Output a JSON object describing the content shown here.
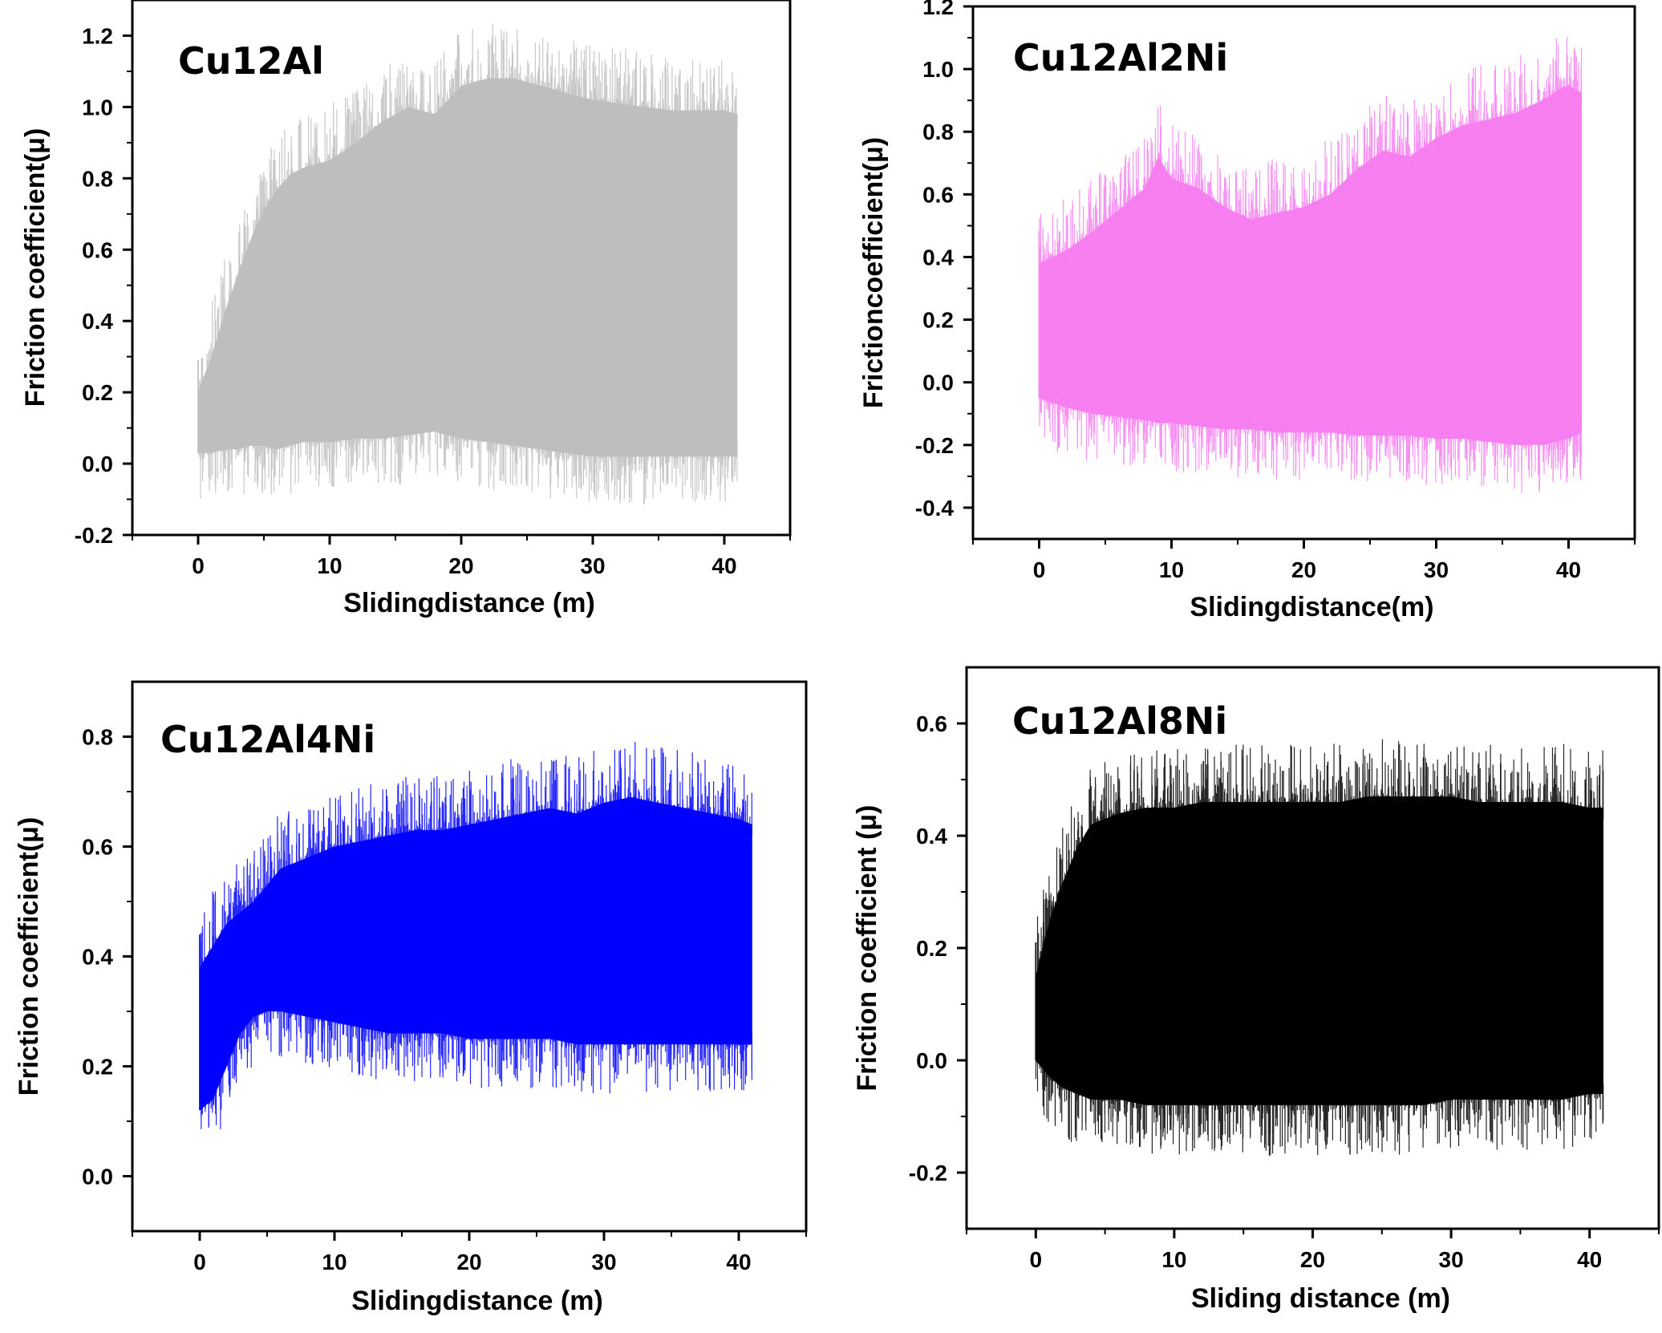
{
  "chart_data": [
    {
      "type": "area",
      "title": "Cu12Al",
      "xlabel": "Slidingdistance (m)",
      "ylabel": "Friction coefficient(μ)",
      "xlim": [
        -5,
        45
      ],
      "ylim": [
        -0.2,
        1.3
      ],
      "xticks": [
        0,
        10,
        20,
        30,
        40
      ],
      "yticks": [
        -0.2,
        0.0,
        0.2,
        0.4,
        0.6,
        0.8,
        1.0,
        1.2
      ],
      "color": "#bebebe",
      "grid": false,
      "series": [
        {
          "role": "upper envelope",
          "x": [
            0,
            1,
            2,
            3,
            4,
            5,
            6,
            7,
            8,
            9,
            10,
            12,
            14,
            16,
            18,
            20,
            22,
            24,
            26,
            28,
            30,
            32,
            34,
            36,
            38,
            40,
            41
          ],
          "values": [
            0.2,
            0.3,
            0.42,
            0.53,
            0.63,
            0.71,
            0.77,
            0.81,
            0.83,
            0.84,
            0.85,
            0.9,
            0.96,
            1.0,
            0.98,
            1.06,
            1.08,
            1.08,
            1.06,
            1.04,
            1.02,
            1.01,
            1.0,
            0.99,
            0.99,
            0.99,
            0.98
          ]
        },
        {
          "role": "lower envelope",
          "x": [
            0,
            1,
            2,
            3,
            4,
            5,
            6,
            7,
            8,
            9,
            10,
            12,
            14,
            16,
            18,
            20,
            22,
            24,
            26,
            28,
            30,
            32,
            34,
            36,
            38,
            40,
            41
          ],
          "values": [
            0.03,
            0.03,
            0.04,
            0.04,
            0.05,
            0.05,
            0.04,
            0.05,
            0.06,
            0.06,
            0.06,
            0.07,
            0.07,
            0.08,
            0.09,
            0.07,
            0.06,
            0.05,
            0.04,
            0.03,
            0.02,
            0.02,
            0.02,
            0.02,
            0.02,
            0.02,
            0.02
          ]
        }
      ]
    },
    {
      "type": "area",
      "title": "Cu12Al2Ni",
      "xlabel": "Slidingdistance(m)",
      "ylabel": "Frictioncoefficient(μ)",
      "xlim": [
        -5,
        45
      ],
      "ylim": [
        -0.5,
        1.2
      ],
      "xticks": [
        0,
        10,
        20,
        30,
        40
      ],
      "yticks": [
        -0.4,
        -0.2,
        0.0,
        0.2,
        0.4,
        0.6,
        0.8,
        1.0,
        1.2
      ],
      "color": "#f77ff0",
      "grid": false,
      "series": [
        {
          "role": "upper envelope",
          "x": [
            0,
            2,
            4,
            6,
            8,
            9,
            10,
            12,
            14,
            16,
            18,
            20,
            22,
            24,
            26,
            28,
            30,
            32,
            34,
            36,
            38,
            40,
            41
          ],
          "values": [
            0.38,
            0.42,
            0.48,
            0.55,
            0.62,
            0.72,
            0.65,
            0.62,
            0.56,
            0.52,
            0.54,
            0.56,
            0.6,
            0.68,
            0.74,
            0.72,
            0.78,
            0.82,
            0.84,
            0.86,
            0.9,
            0.95,
            0.92
          ]
        },
        {
          "role": "lower envelope",
          "x": [
            0,
            2,
            4,
            6,
            8,
            9,
            10,
            12,
            14,
            16,
            18,
            20,
            22,
            24,
            26,
            28,
            30,
            32,
            34,
            36,
            38,
            40,
            41
          ],
          "values": [
            -0.05,
            -0.08,
            -0.1,
            -0.11,
            -0.12,
            -0.13,
            -0.13,
            -0.14,
            -0.15,
            -0.15,
            -0.16,
            -0.16,
            -0.16,
            -0.17,
            -0.17,
            -0.17,
            -0.18,
            -0.18,
            -0.19,
            -0.2,
            -0.2,
            -0.18,
            -0.16
          ]
        }
      ]
    },
    {
      "type": "area",
      "title": "Cu12Al4Ni",
      "xlabel": "Slidingdistance (m)",
      "ylabel": "Friction coefficient(μ)",
      "xlim": [
        -5,
        45
      ],
      "ylim": [
        -0.1,
        0.9
      ],
      "xticks": [
        0,
        10,
        20,
        30,
        40
      ],
      "yticks": [
        0.0,
        0.2,
        0.4,
        0.6,
        0.8
      ],
      "color": "#0000ff",
      "grid": false,
      "series": [
        {
          "role": "upper envelope",
          "x": [
            0,
            1,
            2,
            3,
            4,
            5,
            6,
            8,
            10,
            12,
            14,
            16,
            18,
            20,
            22,
            24,
            26,
            28,
            30,
            32,
            34,
            36,
            38,
            40,
            41
          ],
          "values": [
            0.38,
            0.42,
            0.46,
            0.48,
            0.5,
            0.53,
            0.56,
            0.58,
            0.6,
            0.61,
            0.62,
            0.63,
            0.63,
            0.64,
            0.65,
            0.66,
            0.67,
            0.66,
            0.68,
            0.69,
            0.68,
            0.67,
            0.66,
            0.65,
            0.64
          ]
        },
        {
          "role": "lower envelope",
          "x": [
            0,
            1,
            2,
            3,
            4,
            5,
            6,
            8,
            10,
            12,
            14,
            16,
            18,
            20,
            22,
            24,
            26,
            28,
            30,
            32,
            34,
            36,
            38,
            40,
            41
          ],
          "values": [
            0.12,
            0.14,
            0.2,
            0.26,
            0.29,
            0.3,
            0.3,
            0.29,
            0.28,
            0.27,
            0.26,
            0.26,
            0.26,
            0.25,
            0.25,
            0.25,
            0.25,
            0.24,
            0.24,
            0.24,
            0.24,
            0.24,
            0.24,
            0.24,
            0.24
          ]
        }
      ]
    },
    {
      "type": "area",
      "title": "Cu12Al8Ni",
      "xlabel": "Sliding distance (m)",
      "ylabel": "Friction coefficient (μ)",
      "xlim": [
        -5,
        45
      ],
      "ylim": [
        -0.3,
        0.7
      ],
      "xticks": [
        0,
        10,
        20,
        30,
        40
      ],
      "yticks": [
        -0.2,
        0.0,
        0.2,
        0.4,
        0.6
      ],
      "color": "#000000",
      "grid": false,
      "series": [
        {
          "role": "upper envelope",
          "x": [
            0,
            1,
            2,
            3,
            4,
            6,
            8,
            10,
            12,
            14,
            16,
            18,
            20,
            22,
            24,
            26,
            28,
            30,
            32,
            34,
            36,
            38,
            40,
            41
          ],
          "values": [
            0.15,
            0.25,
            0.32,
            0.38,
            0.42,
            0.44,
            0.45,
            0.45,
            0.46,
            0.46,
            0.46,
            0.46,
            0.46,
            0.46,
            0.47,
            0.47,
            0.47,
            0.47,
            0.46,
            0.46,
            0.46,
            0.46,
            0.45,
            0.45
          ]
        },
        {
          "role": "lower envelope",
          "x": [
            0,
            1,
            2,
            3,
            4,
            6,
            8,
            10,
            12,
            14,
            16,
            18,
            20,
            22,
            24,
            26,
            28,
            30,
            32,
            34,
            36,
            38,
            40,
            41
          ],
          "values": [
            0.0,
            -0.03,
            -0.05,
            -0.06,
            -0.07,
            -0.07,
            -0.08,
            -0.08,
            -0.08,
            -0.08,
            -0.08,
            -0.08,
            -0.08,
            -0.08,
            -0.08,
            -0.08,
            -0.08,
            -0.07,
            -0.07,
            -0.07,
            -0.07,
            -0.07,
            -0.06,
            -0.06
          ]
        }
      ]
    }
  ]
}
